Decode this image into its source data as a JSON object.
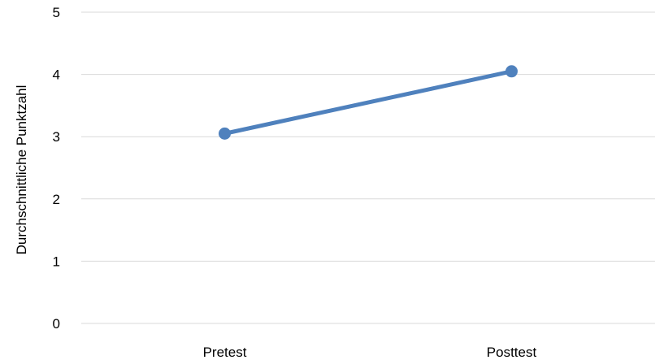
{
  "chart_data": {
    "type": "line",
    "categories": [
      "Pretest",
      "Posttest"
    ],
    "series": [
      {
        "values": [
          3.05,
          4.05
        ]
      }
    ],
    "xlabel": "",
    "ylabel": "Durchschnittliche Punktzahl",
    "ylim": [
      0,
      5
    ],
    "yticks": [
      "0",
      "1",
      "2",
      "3",
      "4",
      "5"
    ],
    "grid": true,
    "legend": "none",
    "colors": {
      "series": "#4f81bd",
      "grid": "#d9d9d9"
    }
  }
}
